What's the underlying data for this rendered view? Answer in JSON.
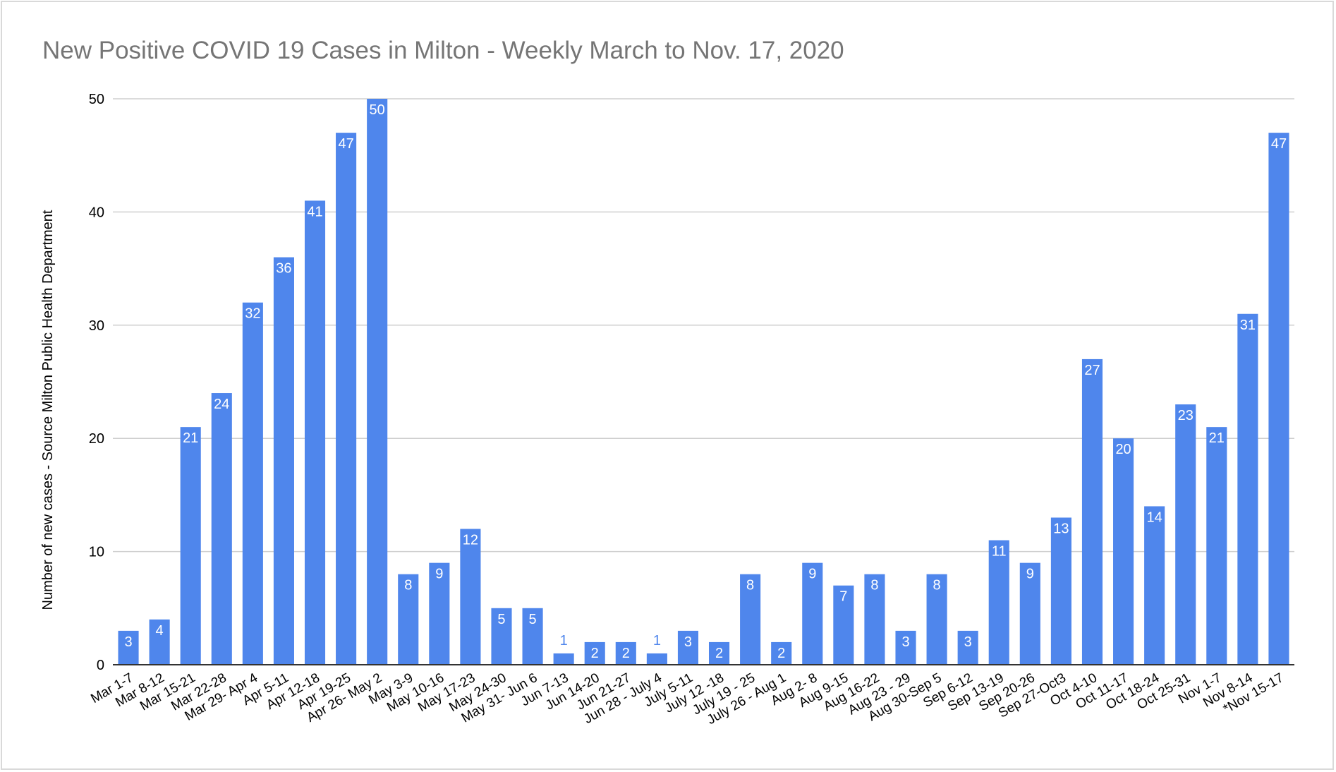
{
  "chart_data": {
    "type": "bar",
    "title": "New Positive COVID 19 Cases in Milton  -  Weekly March to Nov. 17, 2020",
    "xlabel": "",
    "ylabel": "Number of new cases - Source Milton Public Health Department",
    "ylim": [
      0,
      50
    ],
    "yticks": [
      0,
      10,
      20,
      30,
      40,
      50
    ],
    "grid": true,
    "legend": "none",
    "bar_color": "#4f86ec",
    "label_color_inside": "#ffffff",
    "label_color_outside": "#4f86ec",
    "title_color": "#757575",
    "grid_color": "#cfcfcf",
    "categories": [
      "Mar 1-7",
      "Mar 8-12",
      "Mar 15-21",
      "Mar 22-28",
      "Mar 29- Apr 4",
      "Apr 5-11",
      "Apr 12-18",
      "Apr 19-25",
      "Apr 26- May 2",
      "May 3-9",
      "May 10-16",
      "May 17-23",
      "May 24-30",
      "May 31- Jun 6",
      "Jun 7-13",
      "Jun 14-20",
      "Jun 21-27",
      "Jun 28 - July 4",
      "July 5-11",
      "July 12 -18",
      "July 19 - 25",
      "July 26 - Aug 1",
      "Aug 2- 8",
      "Aug 9-15",
      "Aug 16-22",
      "Aug 23 - 29",
      "Aug 30-Sep 5",
      "Sep 6-12",
      "Sep 13-19",
      "Sep 20-26",
      "Sep 27-Oct3",
      "Oct 4-10",
      "Oct 11-17",
      "Oct 18-24",
      "Oct 25-31",
      "Nov 1-7",
      "Nov 8-14",
      "*Nov 15-17"
    ],
    "values": [
      3,
      4,
      21,
      24,
      32,
      36,
      41,
      47,
      50,
      8,
      9,
      12,
      5,
      5,
      1,
      2,
      2,
      1,
      3,
      2,
      8,
      2,
      9,
      7,
      8,
      3,
      8,
      3,
      11,
      9,
      13,
      27,
      20,
      14,
      23,
      21,
      31,
      47
    ]
  }
}
